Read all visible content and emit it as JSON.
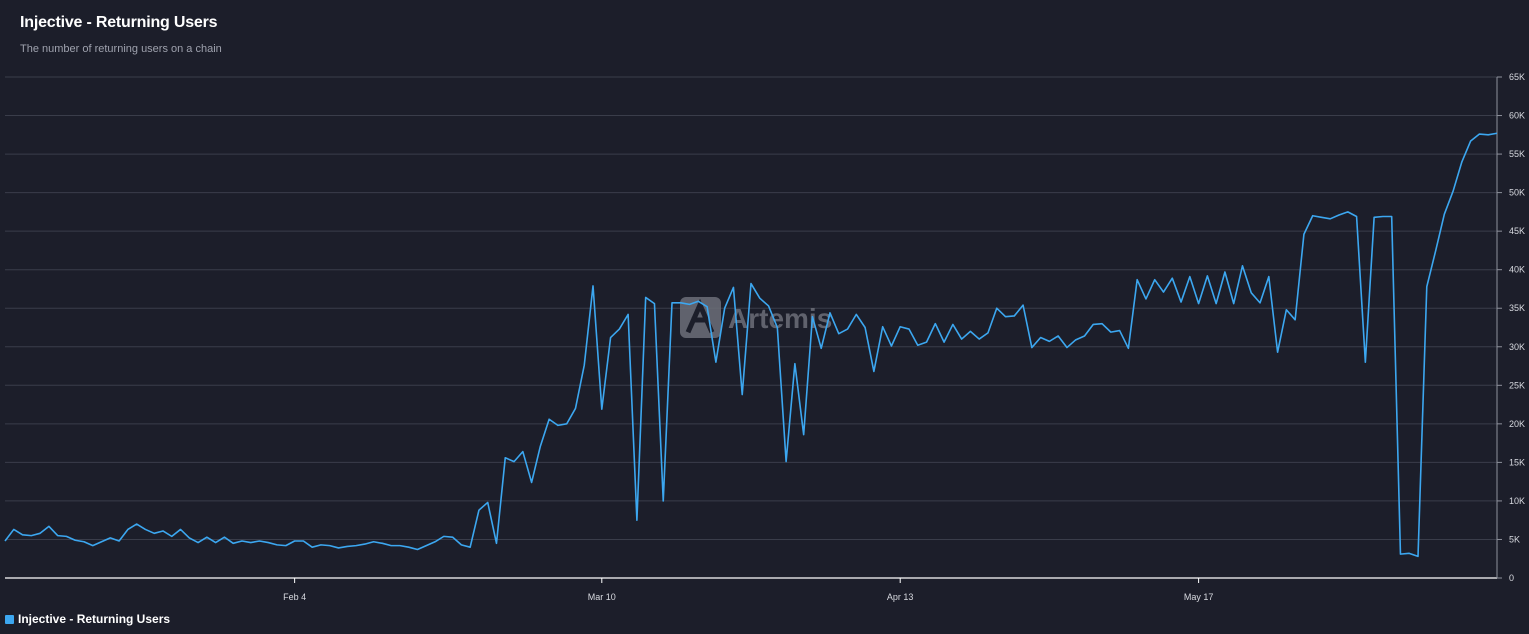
{
  "header": {
    "title": "Injective - Returning Users",
    "subtitle": "The number of returning users on a chain"
  },
  "legend": {
    "label": "Injective - Returning Users",
    "color": "#3ca7f0"
  },
  "watermark": {
    "text": "Artemis",
    "icon": "artemis-logo-icon"
  },
  "colors": {
    "background": "#1c1e2a",
    "grid": "#3a3d4a",
    "line": "#3ca7f0",
    "axis": "#ffffff"
  },
  "chart_data": {
    "type": "line",
    "title": "Injective - Returning Users",
    "subtitle": "The number of returning users on a chain",
    "x_label": "",
    "y_label": "",
    "ylim": [
      0,
      65000
    ],
    "y_ticks": [
      0,
      5000,
      10000,
      15000,
      20000,
      25000,
      30000,
      35000,
      40000,
      45000,
      50000,
      55000,
      60000,
      65000
    ],
    "y_tick_labels": [
      "0",
      "5K",
      "10K",
      "15K",
      "20K",
      "25K",
      "30K",
      "35K",
      "40K",
      "45K",
      "50K",
      "55K",
      "60K",
      "65K"
    ],
    "x_tick_labels": [
      "Feb 4",
      "Mar 10",
      "Apr 13",
      "May 17"
    ],
    "x_tick_index": [
      33,
      68,
      102,
      136
    ],
    "grid": true,
    "legend_position": "bottom-left",
    "series": [
      {
        "name": "Injective - Returning Users",
        "color": "#3ca7f0",
        "values": [
          4800,
          6300,
          5600,
          5500,
          5800,
          6700,
          5500,
          5400,
          4900,
          4700,
          4200,
          4700,
          5200,
          4800,
          6300,
          7000,
          6300,
          5800,
          6100,
          5400,
          6300,
          5200,
          4600,
          5300,
          4600,
          5300,
          4500,
          4800,
          4600,
          4800,
          4600,
          4300,
          4200,
          4800,
          4800,
          4000,
          4300,
          4200,
          3900,
          4100,
          4200,
          4400,
          4700,
          4500,
          4200,
          4200,
          4000,
          3700,
          4200,
          4700,
          5400,
          5300,
          4300,
          4000,
          8800,
          9800,
          4500,
          15600,
          15100,
          16400,
          12400,
          17100,
          20600,
          19800,
          20000,
          22000,
          27600,
          37900,
          21900,
          31200,
          32300,
          34200,
          7500,
          36400,
          35600,
          10000,
          35700,
          35700,
          35500,
          35900,
          35200,
          28000,
          35000,
          37700,
          23800,
          38200,
          36300,
          35300,
          32500,
          15100,
          27800,
          18600,
          33900,
          29800,
          34400,
          31700,
          32300,
          34200,
          32500,
          26800,
          32600,
          30100,
          32600,
          32300,
          30200,
          30600,
          33000,
          30600,
          32900,
          31000,
          32000,
          31000,
          31800,
          35000,
          33900,
          34000,
          35400,
          29900,
          31200,
          30700,
          31400,
          29900,
          30900,
          31400,
          32900,
          33000,
          31900,
          32100,
          29800,
          38700,
          36200,
          38700,
          37100,
          38900,
          35800,
          39100,
          35600,
          39200,
          35600,
          39700,
          35600,
          40500,
          37000,
          35700,
          39100,
          29300,
          34800,
          33500,
          44600,
          47000,
          46800,
          46600,
          47100,
          47500,
          46900,
          28000,
          46800,
          46900,
          46900,
          3100,
          3200,
          2800,
          37800,
          42400,
          47200,
          50200,
          54000,
          56700,
          57600,
          57500,
          57700
        ]
      }
    ]
  }
}
